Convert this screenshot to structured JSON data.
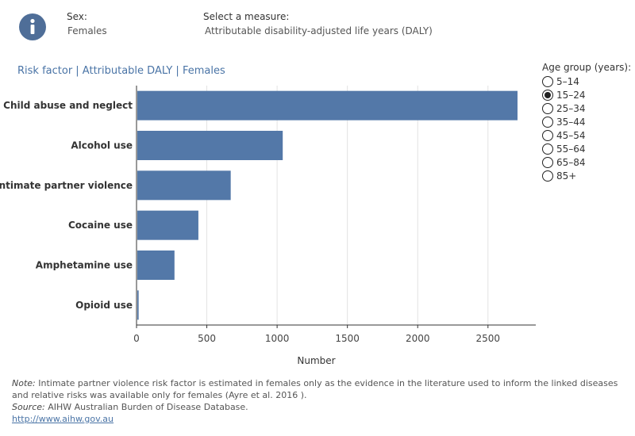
{
  "filters": {
    "sex_label": "Sex:",
    "sex_value": "Females",
    "measure_label": "Select a measure:",
    "measure_value": "Attributable disability-adjusted life years (DALY)"
  },
  "chart_title": "Risk factor | Attributable DALY | Females",
  "legend": {
    "title": "Age group (years):",
    "options": [
      "5–14",
      "15–24",
      "25–34",
      "35–44",
      "45–54",
      "55–64",
      "65–84",
      "85+"
    ],
    "selected": "15–24"
  },
  "footer": {
    "note_label": "Note:",
    "note_text": " Intimate partner violence risk factor is estimated in females only as the evidence in the literature used to inform the linked diseases and relative risks was available only for females (Ayre et al. 2016 ).",
    "source_label": "Source:",
    "source_text": " AIHW Australian Burden of Disease Database.",
    "link": "http://www.aihw.gov.au"
  },
  "colors": {
    "bar": "#5378a8",
    "title": "#4a74a6"
  },
  "chart_data": {
    "type": "bar",
    "orientation": "horizontal",
    "categories": [
      "Child abuse and neglect",
      "Alcohol use",
      "Intimate partner violence",
      "Cocaine use",
      "Amphetamine use",
      "Opioid use"
    ],
    "values": [
      2710,
      1040,
      670,
      440,
      270,
      15
    ],
    "xlabel": "Number",
    "xlim": [
      0,
      2840
    ],
    "xticks": [
      0,
      500,
      1000,
      1500,
      2000,
      2500
    ],
    "grid": "vertical"
  }
}
